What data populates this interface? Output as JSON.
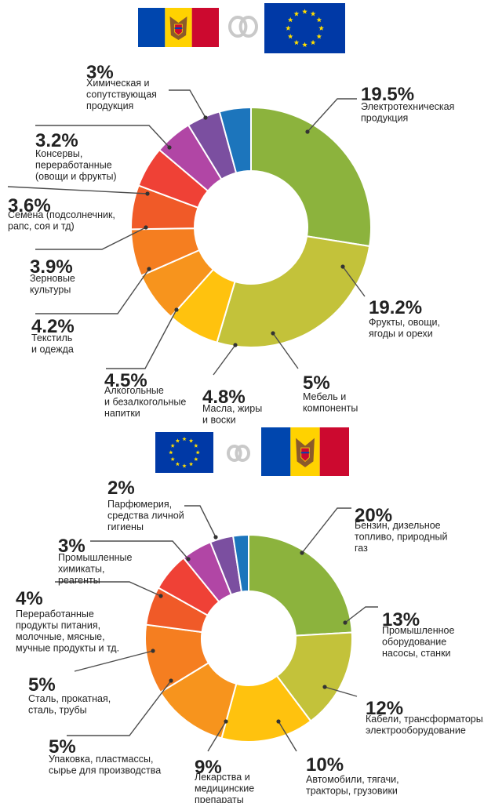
{
  "chart_data": [
    {
      "type": "pie",
      "flags": [
        "moldova-flag",
        "link-icon",
        "eu-flag"
      ],
      "categories": [
        "Электротехническая продукция",
        "Фрукты, овощи, ягоды и орехи",
        "Мебель и компоненты",
        "Масла, жиры и воски",
        "Алкогольные и безалкогольные напитки",
        "Текстиль и одежда",
        "Зерновые культуры",
        "Семена (подсолнечник, рапс, соя и тд)",
        "Консервы, переработанные (овощи и фрукты)",
        "Химическая и сопутствующая продукция"
      ],
      "values": [
        19.5,
        19.2,
        5,
        4.8,
        4.5,
        4.2,
        3.9,
        3.6,
        3.2,
        3
      ],
      "value_labels": [
        "19.5%",
        "19.2%",
        "5%",
        "4.8%",
        "4.5%",
        "4.2%",
        "3.9%",
        "3.6%",
        "3.2%",
        "3%"
      ],
      "label_lines": [
        [
          "Электротехническая",
          "продукция"
        ],
        [
          "Фрукты, овощи,",
          "ягоды и орехи"
        ],
        [
          "Мебель и",
          "компоненты"
        ],
        [
          "Масла, жиры",
          "и воски"
        ],
        [
          "Алкогольные",
          "и безалкогольные",
          "напитки"
        ],
        [
          "Текстиль",
          "и одежда"
        ],
        [
          "Зерновые",
          "культуры"
        ],
        [
          "Семена (подсолнечник,",
          "рапс, соя и тд)"
        ],
        [
          "Консервы,",
          "переработанные",
          "(овощи и фрукты)"
        ],
        [
          "Химическая и",
          "сопутствующая",
          "продукция"
        ]
      ],
      "colors": [
        "#8cb33d",
        "#c3c23a",
        "#ffc20e",
        "#f7941d",
        "#f57e20",
        "#f05a28",
        "#ef4136",
        "#b146a5",
        "#7b4fa0",
        "#1c75bc"
      ]
    },
    {
      "type": "pie",
      "flags": [
        "eu-flag",
        "link-icon",
        "moldova-flag"
      ],
      "categories": [
        "Бензин, дизельное топливо, природный газ",
        "Промышленное оборудование насосы, станки",
        "Кабели, трансформаторы, электрооборудование",
        "Автомобили, тягачи, тракторы, грузовики",
        "Лекарства и медицинские препараты",
        "Упаковка, пластмассы, сырье для производства",
        "Сталь, прокатная, сталь, трубы",
        "Переработанные продукты питания, молочные, мясные, мучные продукты и тд.",
        "Промышленные химикаты, реагенты",
        "Парфюмерия, средства личной гигиены"
      ],
      "values": [
        20,
        13,
        12,
        10,
        9,
        5,
        5,
        4,
        3,
        2
      ],
      "value_labels": [
        "20%",
        "13%",
        "12%",
        "10%",
        "9%",
        "5%",
        "5%",
        "4%",
        "3%",
        "2%"
      ],
      "label_lines": [
        [
          "Бензин, дизельное",
          "топливо, природный",
          "газ"
        ],
        [
          "Промышленное",
          "оборудование",
          "насосы, станки"
        ],
        [
          "Кабели, трансформаторы,",
          "электрооборудование"
        ],
        [
          "Автомобили, тягачи,",
          "тракторы, грузовики"
        ],
        [
          "Лекарства и",
          "медицинские",
          "препараты"
        ],
        [
          "Упаковка, пластмассы,",
          "сырье для производства"
        ],
        [
          "Сталь, прокатная,",
          "сталь, трубы"
        ],
        [
          "Переработанные",
          "продукты питания,",
          "молочные, мясные,",
          "мучные продукты и тд."
        ],
        [
          "Промышленные",
          "химикаты,",
          "реагенты"
        ],
        [
          "Парфюмерия,",
          "средства личной",
          "гигиены"
        ]
      ],
      "colors": [
        "#8cb33d",
        "#c3c23a",
        "#ffc20e",
        "#f7941d",
        "#f57e20",
        "#f05a28",
        "#ef4136",
        "#b146a5",
        "#7b4fa0",
        "#1c75bc"
      ]
    }
  ]
}
